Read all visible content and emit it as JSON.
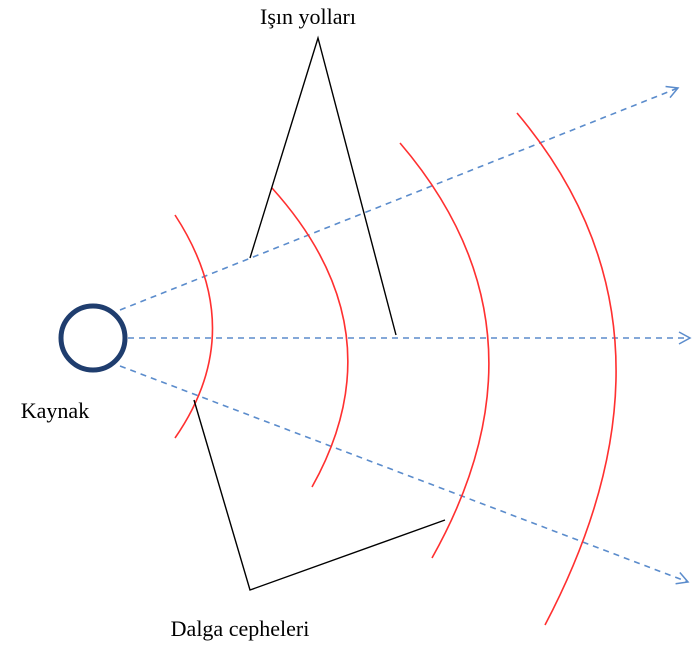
{
  "labels": {
    "rays": "Işın yolları",
    "source": "Kaynak",
    "wavefronts": "Dalga cepheleri"
  }
}
